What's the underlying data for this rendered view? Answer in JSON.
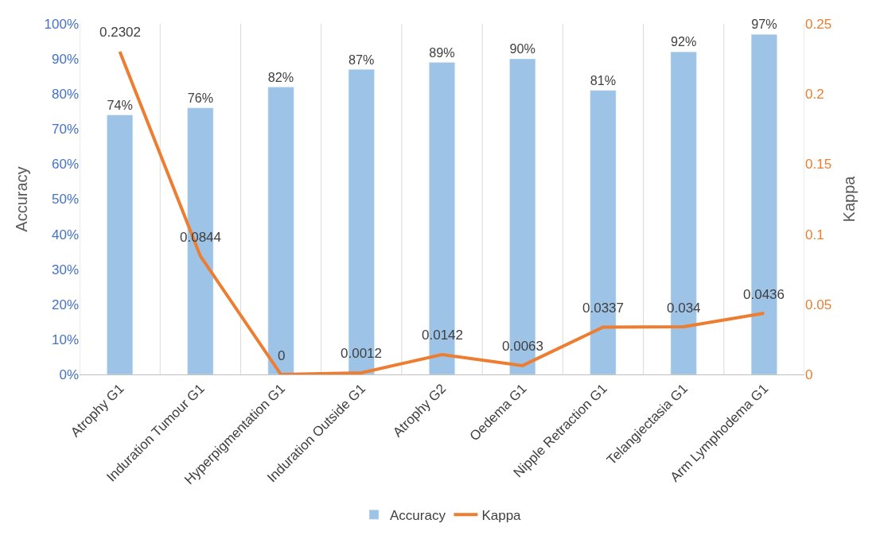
{
  "chart_data": {
    "type": "bar",
    "ylabel": "Accuracy",
    "y2label": "Kappa",
    "categories": [
      "Atrophy G1",
      "Induration Tumour G1",
      "Hyperpigmentation G1",
      "Induration Outside G1",
      "Atrophy G2",
      "Oedema G1",
      "Nipple Retraction G1",
      "Telangiectasia G1",
      "Arm Lymphodema G1"
    ],
    "series": [
      {
        "name": "Accuracy",
        "color": "#9dc3e6",
        "values": [
          74,
          76,
          82,
          87,
          89,
          90,
          81,
          92,
          97
        ],
        "value_labels": [
          "74%",
          "76%",
          "82%",
          "87%",
          "89%",
          "90%",
          "81%",
          "92%",
          "97%"
        ]
      },
      {
        "name": "Kappa",
        "type": "line",
        "axis": "y2",
        "color": "#ed7d31",
        "values": [
          0.2302,
          0.0844,
          0,
          0.0012,
          0.0142,
          0.0063,
          0.0337,
          0.034,
          0.0436
        ],
        "value_labels": [
          "0.2302",
          "0.0844",
          "0",
          "0.0012",
          "0.0142",
          "0.0063",
          "0.0337",
          "0.034",
          "0.0436"
        ]
      }
    ],
    "ylim": [
      0,
      100
    ],
    "yticks": [
      {
        "value": 0,
        "label": "0%"
      },
      {
        "value": 10,
        "label": "10%"
      },
      {
        "value": 20,
        "label": "20%"
      },
      {
        "value": 30,
        "label": "30%"
      },
      {
        "value": 40,
        "label": "40%"
      },
      {
        "value": 50,
        "label": "50%"
      },
      {
        "value": 60,
        "label": "60%"
      },
      {
        "value": 70,
        "label": "70%"
      },
      {
        "value": 80,
        "label": "80%"
      },
      {
        "value": 90,
        "label": "90%"
      },
      {
        "value": 100,
        "label": "100%"
      }
    ],
    "y2lim": [
      0,
      0.25
    ],
    "y2ticks": [
      0,
      {
        "value": 0.05,
        "label": "0.05"
      },
      {
        "value": 0.1,
        "label": "0.1"
      },
      {
        "value": 0.15,
        "label": "0.15"
      },
      {
        "value": 0.2,
        "label": "0.2"
      },
      {
        "value": 0.25,
        "label": "0.25"
      }
    ],
    "grid": "x",
    "legend": "bottom",
    "marker": "none",
    "line_style": "solid"
  }
}
